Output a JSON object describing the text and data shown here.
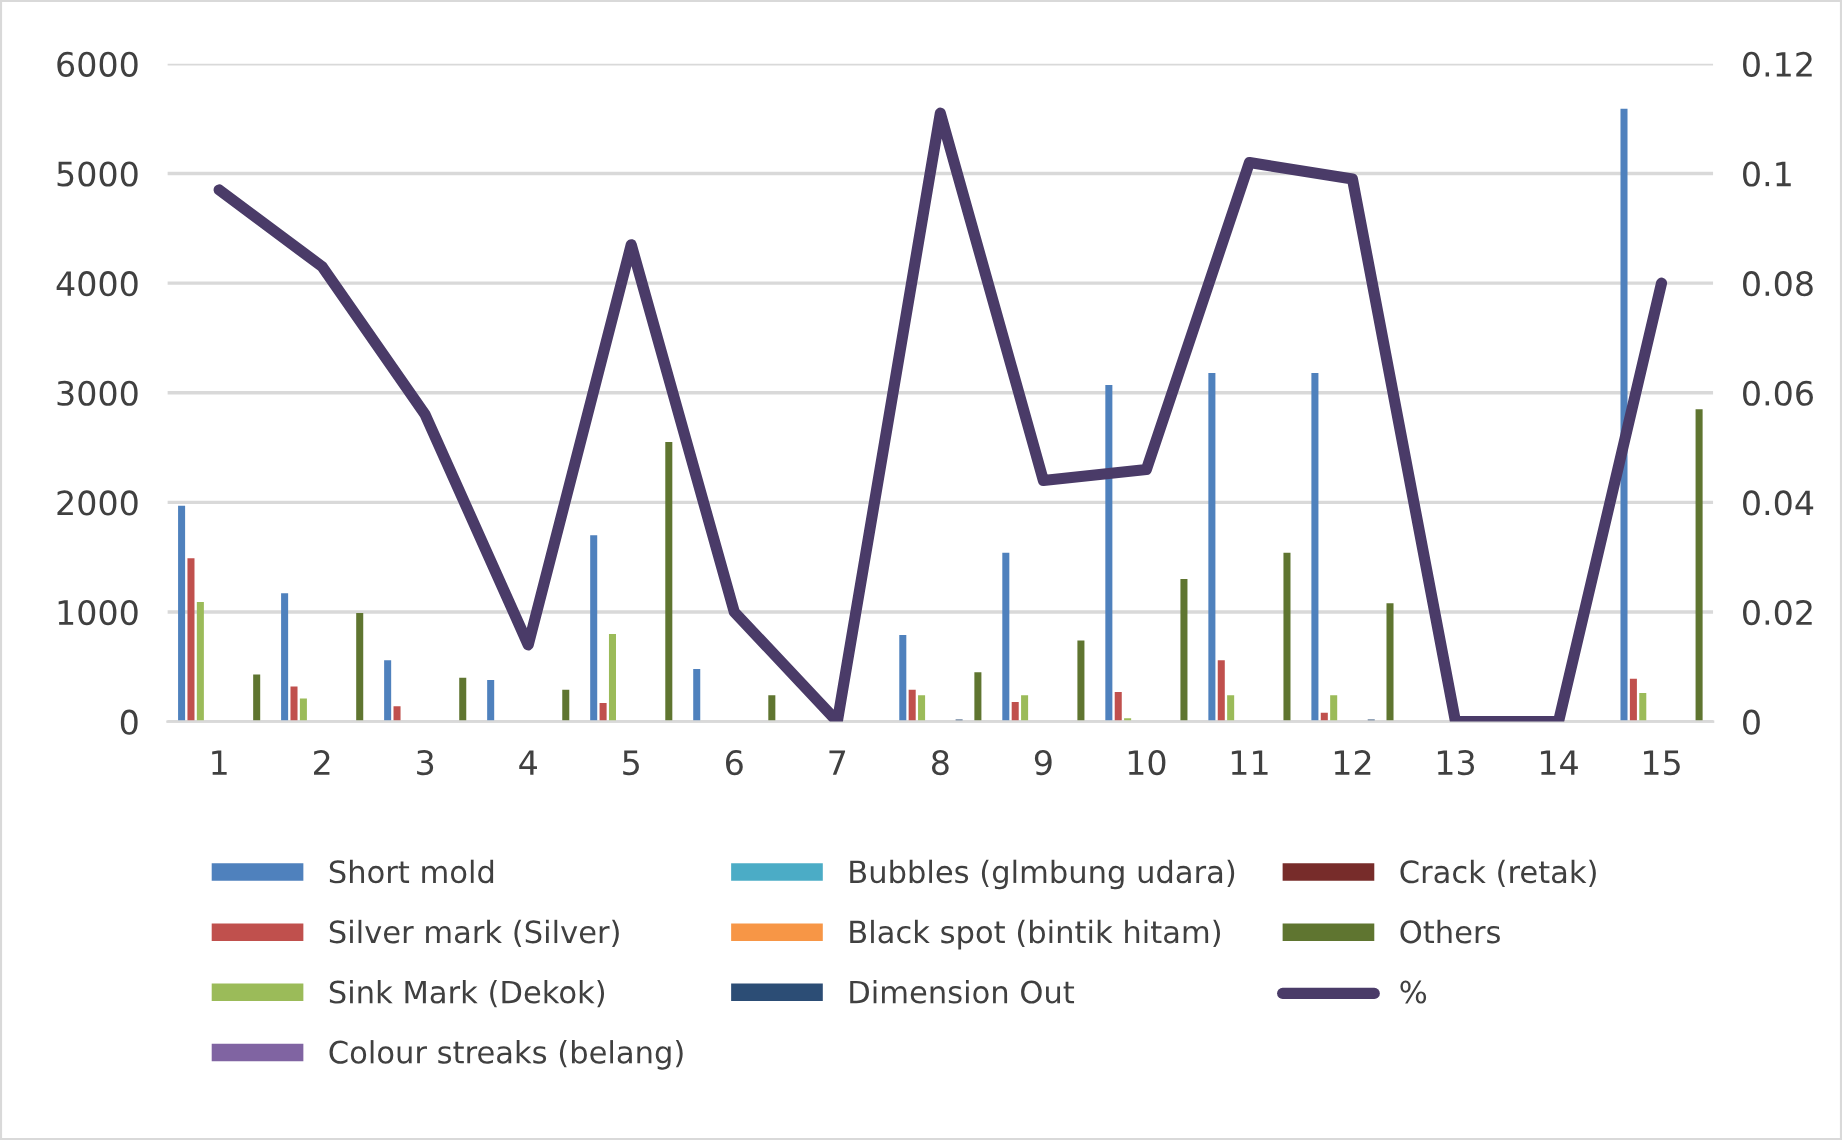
{
  "chart_data": {
    "type": "bar",
    "categories": [
      "1",
      "2",
      "3",
      "4",
      "5",
      "6",
      "7",
      "8",
      "9",
      "10",
      "11",
      "12",
      "13",
      "14",
      "15"
    ],
    "series": [
      {
        "name": "Short mold",
        "color": "#4f81bd",
        "values": [
          1970,
          1170,
          560,
          380,
          1700,
          480,
          0,
          790,
          1540,
          3070,
          3180,
          3180,
          0,
          0,
          5590
        ]
      },
      {
        "name": "Silver mark (Silver)",
        "color": "#c0504d",
        "values": [
          1490,
          320,
          140,
          0,
          170,
          0,
          0,
          290,
          180,
          270,
          560,
          80,
          0,
          0,
          390
        ]
      },
      {
        "name": "Sink Mark (Dekok)",
        "color": "#9bbb59",
        "values": [
          1090,
          210,
          0,
          0,
          800,
          0,
          0,
          240,
          240,
          30,
          240,
          240,
          0,
          0,
          260
        ]
      },
      {
        "name": "Colour streaks (belang)",
        "color": "#8064a2",
        "values": [
          0,
          0,
          0,
          0,
          0,
          0,
          0,
          0,
          0,
          0,
          0,
          0,
          0,
          0,
          0
        ]
      },
      {
        "name": "Bubbles (glmbung udara)",
        "color": "#4bacc6",
        "values": [
          0,
          0,
          0,
          0,
          0,
          0,
          0,
          0,
          0,
          0,
          0,
          0,
          0,
          0,
          0
        ]
      },
      {
        "name": "Black spot (bintik hitam)",
        "color": "#f79646",
        "values": [
          0,
          0,
          0,
          0,
          0,
          0,
          0,
          0,
          0,
          0,
          0,
          0,
          0,
          0,
          0
        ]
      },
      {
        "name": "Dimension Out",
        "color": "#2c4d75",
        "values": [
          0,
          0,
          0,
          0,
          0,
          0,
          0,
          20,
          0,
          0,
          0,
          20,
          0,
          0,
          0
        ]
      },
      {
        "name": "Crack (retak)",
        "color": "#772c2a",
        "values": [
          0,
          0,
          0,
          0,
          0,
          0,
          0,
          0,
          0,
          0,
          0,
          0,
          0,
          0,
          0
        ]
      },
      {
        "name": "Others",
        "color": "#5f7530",
        "values": [
          430,
          990,
          400,
          290,
          2550,
          240,
          0,
          450,
          740,
          1300,
          1540,
          1080,
          0,
          0,
          2850
        ]
      },
      {
        "name": "%",
        "color": "#4a3b68",
        "type": "line",
        "axis": "y2",
        "values": [
          0.097,
          0.083,
          0.056,
          0.014,
          0.087,
          0.02,
          0,
          0.111,
          0.044,
          0.046,
          0.102,
          0.099,
          0,
          0,
          0.08
        ]
      }
    ],
    "ylim": [
      0,
      6000
    ],
    "yticks": [
      0,
      1000,
      2000,
      3000,
      4000,
      5000,
      6000
    ],
    "y2lim": [
      0,
      0.12
    ],
    "y2ticks": [
      0,
      0.02,
      0.04,
      0.06,
      0.08,
      0.1,
      0.12
    ],
    "grid": "y",
    "legend": "bottom"
  }
}
